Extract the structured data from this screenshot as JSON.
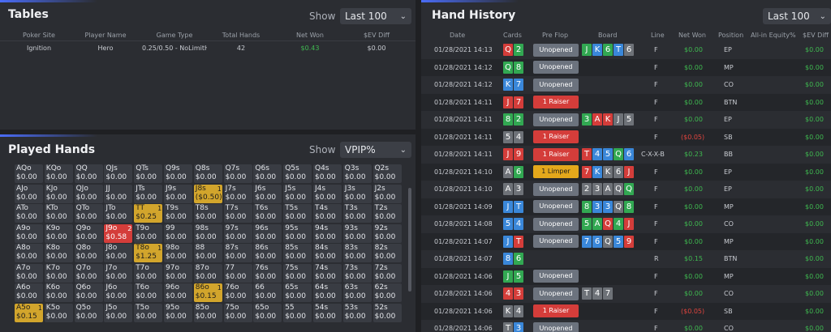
{
  "tables": {
    "title": "Tables",
    "show_label": "Show",
    "filter": "Last 100",
    "headers": [
      "Poker Site",
      "Player Name",
      "Game Type",
      "Total Hands",
      "Net Won",
      "$EV Diff"
    ],
    "rows": [
      [
        "Ignition",
        "Hero",
        "0.25/0.50 - NoLimitH",
        "42",
        "$0.43",
        "$0.00"
      ]
    ]
  },
  "played": {
    "title": "Played Hands",
    "show_label": "Show",
    "filter": "VPIP%",
    "cells": [
      [
        [
          "AQo",
          "$0.00"
        ],
        [
          "KQo",
          "$0.00"
        ],
        [
          "QQ",
          "$0.00"
        ],
        [
          "QJs",
          "$0.00"
        ],
        [
          "QTs",
          "$0.00"
        ],
        [
          "Q9s",
          "$0.00"
        ],
        [
          "Q8s",
          "$0.00"
        ],
        [
          "Q7s",
          "$0.00"
        ],
        [
          "Q6s",
          "$0.00"
        ],
        [
          "Q5s",
          "$0.00"
        ],
        [
          "Q4s",
          "$0.00"
        ],
        [
          "Q3s",
          "$0.00"
        ],
        [
          "Q2s",
          "$0.00"
        ]
      ],
      [
        [
          "AJo",
          "$0.00"
        ],
        [
          "KJo",
          "$0.00"
        ],
        [
          "QJo",
          "$0.00"
        ],
        [
          "JJ",
          "$0.00"
        ],
        [
          "JTs",
          "$0.00"
        ],
        [
          "J9s",
          "$0.00"
        ],
        [
          "J8s",
          "($0.50)",
          "y",
          "1"
        ],
        [
          "J7s",
          "$0.00"
        ],
        [
          "J6s",
          "$0.00"
        ],
        [
          "J5s",
          "$0.00"
        ],
        [
          "J4s",
          "$0.00"
        ],
        [
          "J3s",
          "$0.00"
        ],
        [
          "J2s",
          "$0.00"
        ]
      ],
      [
        [
          "ATo",
          "$0.00"
        ],
        [
          "KTo",
          "$0.00"
        ],
        [
          "QTo",
          "$0.00"
        ],
        [
          "JTo",
          "$0.00"
        ],
        [
          "TT",
          "$0.25",
          "y",
          "1"
        ],
        [
          "T9s",
          "$0.00"
        ],
        [
          "T8s",
          "$0.00"
        ],
        [
          "T7s",
          "$0.00"
        ],
        [
          "T6s",
          "$0.00"
        ],
        [
          "T5s",
          "$0.00"
        ],
        [
          "T4s",
          "$0.00"
        ],
        [
          "T3s",
          "$0.00"
        ],
        [
          "T2s",
          "$0.00"
        ]
      ],
      [
        [
          "A9o",
          "$0.00"
        ],
        [
          "K9o",
          "$0.00"
        ],
        [
          "Q9o",
          "$0.00"
        ],
        [
          "J9o",
          "$0.58",
          "r",
          "2"
        ],
        [
          "T9o",
          "$0.00"
        ],
        [
          "99",
          "$0.00"
        ],
        [
          "98s",
          "$0.00"
        ],
        [
          "97s",
          "$0.00"
        ],
        [
          "96s",
          "$0.00"
        ],
        [
          "95s",
          "$0.00"
        ],
        [
          "94s",
          "$0.00"
        ],
        [
          "93s",
          "$0.00"
        ],
        [
          "92s",
          "$0.00"
        ]
      ],
      [
        [
          "A8o",
          "$0.00"
        ],
        [
          "K8o",
          "$0.00"
        ],
        [
          "Q8o",
          "$0.00"
        ],
        [
          "J8o",
          "$0.00"
        ],
        [
          "T8o",
          "$1.25",
          "y",
          "1"
        ],
        [
          "98o",
          "$0.00"
        ],
        [
          "88",
          "$0.00"
        ],
        [
          "87s",
          "$0.00"
        ],
        [
          "86s",
          "$0.00"
        ],
        [
          "85s",
          "$0.00"
        ],
        [
          "84s",
          "$0.00"
        ],
        [
          "83s",
          "$0.00"
        ],
        [
          "82s",
          "$0.00"
        ]
      ],
      [
        [
          "A7o",
          "$0.00"
        ],
        [
          "K7o",
          "$0.00"
        ],
        [
          "Q7o",
          "$0.00"
        ],
        [
          "J7o",
          "$0.00"
        ],
        [
          "T7o",
          "$0.00"
        ],
        [
          "97o",
          "$0.00"
        ],
        [
          "87o",
          "$0.00"
        ],
        [
          "77",
          "$0.00"
        ],
        [
          "76s",
          "$0.00"
        ],
        [
          "75s",
          "$0.00"
        ],
        [
          "74s",
          "$0.00"
        ],
        [
          "73s",
          "$0.00"
        ],
        [
          "72s",
          "$0.00"
        ]
      ],
      [
        [
          "A6o",
          "$0.00"
        ],
        [
          "K6o",
          "$0.00"
        ],
        [
          "Q6o",
          "$0.00"
        ],
        [
          "J6o",
          "$0.00"
        ],
        [
          "T6o",
          "$0.00"
        ],
        [
          "96o",
          "$0.00"
        ],
        [
          "86o",
          "$0.15",
          "y",
          "1"
        ],
        [
          "76o",
          "$0.00"
        ],
        [
          "66",
          "$0.00"
        ],
        [
          "65s",
          "$0.00"
        ],
        [
          "64s",
          "$0.00"
        ],
        [
          "63s",
          "$0.00"
        ],
        [
          "62s",
          "$0.00"
        ]
      ],
      [
        [
          "A5o",
          "$0.15",
          "y",
          "1"
        ],
        [
          "K5o",
          "$0.00"
        ],
        [
          "Q5o",
          "$0.00"
        ],
        [
          "J5o",
          "$0.00"
        ],
        [
          "T5o",
          "$0.00"
        ],
        [
          "95o",
          "$0.00"
        ],
        [
          "85o",
          "$0.00"
        ],
        [
          "75o",
          "$0.00"
        ],
        [
          "65o",
          "$0.00"
        ],
        [
          "55",
          "$0.00"
        ],
        [
          "54s",
          "$0.00"
        ],
        [
          "53s",
          "$0.00"
        ],
        [
          "52s",
          "$0.00"
        ]
      ]
    ]
  },
  "history": {
    "title": "Hand History",
    "filter": "Last 100",
    "headers": [
      "Date",
      "Cards",
      "Pre Flop",
      "Board",
      "Line",
      "Net Won",
      "Position",
      "All-in Equity%",
      "$EV Diff"
    ],
    "rows": [
      {
        "date": "01/28/2021 14:13",
        "cards": [
          [
            "Q",
            "h"
          ],
          [
            "2",
            "c"
          ]
        ],
        "pf": "Unopened",
        "pft": "u",
        "board": [
          [
            "J",
            "c"
          ],
          [
            "K",
            "d"
          ],
          [
            "6",
            "c"
          ],
          [
            "T",
            "d"
          ],
          [
            "6",
            "s"
          ]
        ],
        "line": "F",
        "net": "$0.00",
        "nc": "green",
        "pos": "EP",
        "ev": "$0.00"
      },
      {
        "date": "01/28/2021 14:12",
        "cards": [
          [
            "Q",
            "c"
          ],
          [
            "8",
            "c"
          ]
        ],
        "pf": "Unopened",
        "pft": "u",
        "board": [],
        "line": "F",
        "net": "$0.00",
        "nc": "green",
        "pos": "MP",
        "ev": "$0.00"
      },
      {
        "date": "01/28/2021 14:12",
        "cards": [
          [
            "K",
            "d"
          ],
          [
            "7",
            "d"
          ]
        ],
        "pf": "Unopened",
        "pft": "u",
        "board": [],
        "line": "F",
        "net": "$0.00",
        "nc": "green",
        "pos": "CO",
        "ev": "$0.00"
      },
      {
        "date": "01/28/2021 14:11",
        "cards": [
          [
            "J",
            "h"
          ],
          [
            "7",
            "h"
          ]
        ],
        "pf": "1 Raiser",
        "pft": "r",
        "board": [],
        "line": "F",
        "net": "$0.00",
        "nc": "green",
        "pos": "BTN",
        "ev": "$0.00"
      },
      {
        "date": "01/28/2021 14:11",
        "cards": [
          [
            "8",
            "c"
          ],
          [
            "2",
            "c"
          ]
        ],
        "pf": "Unopened",
        "pft": "u",
        "board": [
          [
            "3",
            "c"
          ],
          [
            "A",
            "h"
          ],
          [
            "K",
            "h"
          ],
          [
            "J",
            "s"
          ],
          [
            "5",
            "s"
          ]
        ],
        "line": "F",
        "net": "$0.00",
        "nc": "green",
        "pos": "EP",
        "ev": "$0.00"
      },
      {
        "date": "01/28/2021 14:11",
        "cards": [
          [
            "5",
            "s"
          ],
          [
            "4",
            "s"
          ]
        ],
        "pf": "1 Raiser",
        "pft": "r",
        "board": [],
        "line": "F",
        "net": "($0.05)",
        "nc": "red",
        "pos": "SB",
        "ev": "$0.00"
      },
      {
        "date": "01/28/2021 14:11",
        "cards": [
          [
            "J",
            "h"
          ],
          [
            "9",
            "h"
          ]
        ],
        "pf": "1 Raiser",
        "pft": "r",
        "board": [
          [
            "T",
            "h"
          ],
          [
            "4",
            "d"
          ],
          [
            "5",
            "d"
          ],
          [
            "Q",
            "c"
          ],
          [
            "6",
            "d"
          ]
        ],
        "line": "C-X-X-B",
        "net": "$0.23",
        "nc": "green",
        "pos": "BB",
        "ev": "$0.00"
      },
      {
        "date": "01/28/2021 14:10",
        "cards": [
          [
            "A",
            "s"
          ],
          [
            "6",
            "c"
          ]
        ],
        "pf": "1 Limper",
        "pft": "l",
        "board": [
          [
            "7",
            "h"
          ],
          [
            "K",
            "d"
          ],
          [
            "K",
            "s"
          ],
          [
            "6",
            "s"
          ],
          [
            "J",
            "h"
          ]
        ],
        "line": "F",
        "net": "$0.00",
        "nc": "green",
        "pos": "EP",
        "ev": "$0.00"
      },
      {
        "date": "01/28/2021 14:10",
        "cards": [
          [
            "A",
            "s"
          ],
          [
            "3",
            "s"
          ]
        ],
        "pf": "Unopened",
        "pft": "u",
        "board": [
          [
            "2",
            "s"
          ],
          [
            "3",
            "s"
          ],
          [
            "A",
            "s"
          ],
          [
            "Q",
            "s"
          ],
          [
            "Q",
            "c"
          ]
        ],
        "line": "F",
        "net": "$0.00",
        "nc": "green",
        "pos": "EP",
        "ev": "$0.00"
      },
      {
        "date": "01/28/2021 14:09",
        "cards": [
          [
            "J",
            "d"
          ],
          [
            "T",
            "d"
          ]
        ],
        "pf": "Unopened",
        "pft": "u",
        "board": [
          [
            "8",
            "c"
          ],
          [
            "3",
            "d"
          ],
          [
            "3",
            "d"
          ],
          [
            "Q",
            "s"
          ],
          [
            "8",
            "c"
          ]
        ],
        "line": "F",
        "net": "$0.00",
        "nc": "green",
        "pos": "MP",
        "ev": "$0.00"
      },
      {
        "date": "01/28/2021 14:08",
        "cards": [
          [
            "5",
            "d"
          ],
          [
            "4",
            "d"
          ]
        ],
        "pf": "Unopened",
        "pft": "u",
        "board": [
          [
            "5",
            "c"
          ],
          [
            "A",
            "c"
          ],
          [
            "Q",
            "h"
          ],
          [
            "4",
            "c"
          ],
          [
            "J",
            "h"
          ]
        ],
        "line": "F",
        "net": "$0.00",
        "nc": "green",
        "pos": "CO",
        "ev": "$0.00"
      },
      {
        "date": "01/28/2021 14:07",
        "cards": [
          [
            "J",
            "d"
          ],
          [
            "T",
            "h"
          ]
        ],
        "pf": "Unopened",
        "pft": "u",
        "board": [
          [
            "7",
            "d"
          ],
          [
            "6",
            "d"
          ],
          [
            "Q",
            "s"
          ],
          [
            "5",
            "d"
          ],
          [
            "9",
            "h"
          ]
        ],
        "line": "F",
        "net": "$0.00",
        "nc": "green",
        "pos": "MP",
        "ev": "$0.00"
      },
      {
        "date": "01/28/2021 14:07",
        "cards": [
          [
            "8",
            "d"
          ],
          [
            "6",
            "c"
          ]
        ],
        "pf": "",
        "pft": "",
        "board": [],
        "line": "R",
        "net": "$0.15",
        "nc": "green",
        "pos": "BTN",
        "ev": "$0.00"
      },
      {
        "date": "01/28/2021 14:06",
        "cards": [
          [
            "J",
            "c"
          ],
          [
            "5",
            "c"
          ]
        ],
        "pf": "Unopened",
        "pft": "u",
        "board": [],
        "line": "F",
        "net": "$0.00",
        "nc": "green",
        "pos": "MP",
        "ev": "$0.00"
      },
      {
        "date": "01/28/2021 14:06",
        "cards": [
          [
            "4",
            "h"
          ],
          [
            "3",
            "h"
          ]
        ],
        "pf": "Unopened",
        "pft": "u",
        "board": [
          [
            "T",
            "s"
          ],
          [
            "4",
            "s"
          ],
          [
            "7",
            "s"
          ]
        ],
        "line": "F",
        "net": "$0.00",
        "nc": "green",
        "pos": "CO",
        "ev": "$0.00"
      },
      {
        "date": "01/28/2021 14:06",
        "cards": [
          [
            "K",
            "s"
          ],
          [
            "4",
            "s"
          ]
        ],
        "pf": "1 Raiser",
        "pft": "r",
        "board": [],
        "line": "F",
        "net": "($0.05)",
        "nc": "red",
        "pos": "SB",
        "ev": "$0.00"
      },
      {
        "date": "01/28/2021 14:06",
        "cards": [
          [
            "T",
            "s"
          ],
          [
            "3",
            "d"
          ]
        ],
        "pf": "Unopened",
        "pft": "u",
        "board": [],
        "line": "F",
        "net": "$0.00",
        "nc": "green",
        "pos": "CO",
        "ev": "$0.00"
      }
    ]
  }
}
